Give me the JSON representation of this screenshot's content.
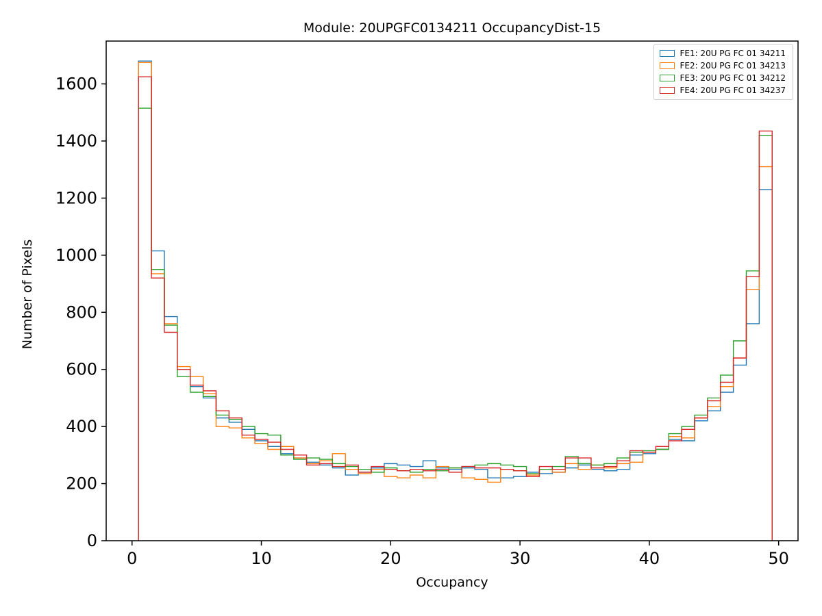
{
  "chart_data": {
    "type": "step-histogram",
    "title": "Module: 20UPGFC0134211 OccupancyDist-15",
    "xlabel": "Occupancy",
    "ylabel": "Number of Pixels",
    "xlim": [
      -2.0,
      51.5
    ],
    "ylim": [
      0,
      1750
    ],
    "x_ticks": [
      0,
      10,
      20,
      30,
      40,
      50
    ],
    "y_ticks": [
      0,
      200,
      400,
      600,
      800,
      1000,
      1200,
      1400,
      1600
    ],
    "bin_start": 0.5,
    "bin_width": 1,
    "grid": false,
    "legend_position": "upper-right",
    "series": [
      {
        "name": "FE1: 20U PG FC 01 34211",
        "color": "#1f77b4",
        "values": [
          1680,
          1015,
          785,
          600,
          540,
          500,
          430,
          415,
          390,
          350,
          330,
          305,
          290,
          275,
          265,
          255,
          230,
          240,
          255,
          270,
          265,
          260,
          280,
          255,
          250,
          255,
          250,
          220,
          220,
          225,
          240,
          235,
          240,
          255,
          265,
          250,
          245,
          250,
          300,
          305,
          320,
          355,
          350,
          420,
          455,
          520,
          615,
          760,
          1230
        ]
      },
      {
        "name": "FE2: 20U PG FC 01 34213",
        "color": "#ff7f0e",
        "values": [
          1675,
          935,
          760,
          610,
          575,
          515,
          400,
          395,
          360,
          340,
          320,
          330,
          290,
          270,
          280,
          305,
          250,
          235,
          250,
          225,
          220,
          230,
          220,
          260,
          255,
          220,
          215,
          205,
          250,
          245,
          230,
          250,
          240,
          270,
          250,
          265,
          255,
          270,
          275,
          310,
          320,
          365,
          360,
          430,
          470,
          540,
          640,
          880,
          1310
        ]
      },
      {
        "name": "FE3: 20U PG FC 01 34212",
        "color": "#2ca02c",
        "values": [
          1515,
          950,
          755,
          575,
          520,
          505,
          440,
          425,
          400,
          375,
          370,
          300,
          285,
          290,
          285,
          270,
          260,
          250,
          240,
          255,
          245,
          240,
          250,
          245,
          255,
          260,
          265,
          270,
          265,
          260,
          235,
          250,
          260,
          295,
          270,
          265,
          270,
          290,
          310,
          315,
          320,
          375,
          400,
          440,
          500,
          580,
          700,
          945,
          1420
        ]
      },
      {
        "name": "FE4: 20U PG FC 01 34237",
        "color": "#d62728",
        "values": [
          1625,
          920,
          730,
          600,
          545,
          525,
          455,
          430,
          370,
          355,
          345,
          320,
          300,
          265,
          270,
          260,
          265,
          240,
          260,
          250,
          245,
          250,
          245,
          250,
          240,
          260,
          255,
          255,
          250,
          245,
          225,
          260,
          250,
          290,
          290,
          255,
          260,
          280,
          315,
          310,
          330,
          350,
          390,
          430,
          490,
          555,
          640,
          925,
          1435
        ]
      }
    ]
  }
}
